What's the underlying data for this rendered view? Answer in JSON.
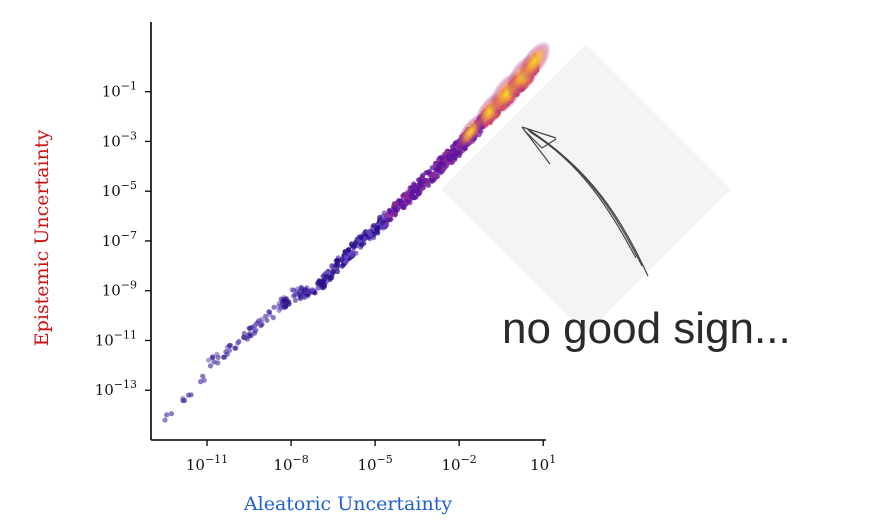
{
  "chart_data": {
    "type": "scatter",
    "title": "",
    "xlabel": "Aleatoric Uncertainty",
    "ylabel": "Epistemic Uncertainty",
    "xscale": "log",
    "yscale": "log",
    "xlim_exp": [
      -13,
      1.1
    ],
    "ylim_exp": [
      -15,
      1.8
    ],
    "x_ticks": [
      {
        "exp": -11,
        "base": "10",
        "sup": "−11"
      },
      {
        "exp": -8,
        "base": "10",
        "sup": "−8"
      },
      {
        "exp": -5,
        "base": "10",
        "sup": "−5"
      },
      {
        "exp": -2,
        "base": "10",
        "sup": "−2"
      },
      {
        "exp": 1,
        "base": "10",
        "sup": "1"
      }
    ],
    "y_ticks": [
      {
        "exp": -1,
        "base": "10",
        "sup": "−1"
      },
      {
        "exp": -3,
        "base": "10",
        "sup": "−3"
      },
      {
        "exp": -5,
        "base": "10",
        "sup": "−5"
      },
      {
        "exp": -7,
        "base": "10",
        "sup": "−7"
      },
      {
        "exp": -9,
        "base": "10",
        "sup": "−9"
      },
      {
        "exp": -11,
        "base": "10",
        "sup": "−11"
      },
      {
        "exp": -13,
        "base": "10",
        "sup": "−13"
      }
    ],
    "grid": false,
    "legend": "none",
    "colormap": "plasma (density)",
    "colors": {
      "xlabel": "#1f5fd1",
      "ylabel": "#cc1111",
      "low_density": "#2a0f8a",
      "high_density": "#fde725"
    },
    "trend_points_log10": [
      [
        -12.5,
        -14.2
      ],
      [
        -11.5,
        -13.0
      ],
      [
        -11.0,
        -12.0
      ],
      [
        -10.0,
        -11.2
      ],
      [
        -9.0,
        -10.2
      ],
      [
        -8.0,
        -9.2
      ],
      [
        -7.0,
        -8.8
      ],
      [
        -6.0,
        -7.5
      ],
      [
        -5.0,
        -6.5
      ],
      [
        -4.0,
        -5.4
      ],
      [
        -3.0,
        -4.3
      ],
      [
        -2.0,
        -3.2
      ],
      [
        -1.0,
        -2.0
      ],
      [
        0.0,
        -0.8
      ],
      [
        0.5,
        -0.2
      ],
      [
        0.8,
        0.3
      ]
    ],
    "annotation": "no good sign..."
  }
}
